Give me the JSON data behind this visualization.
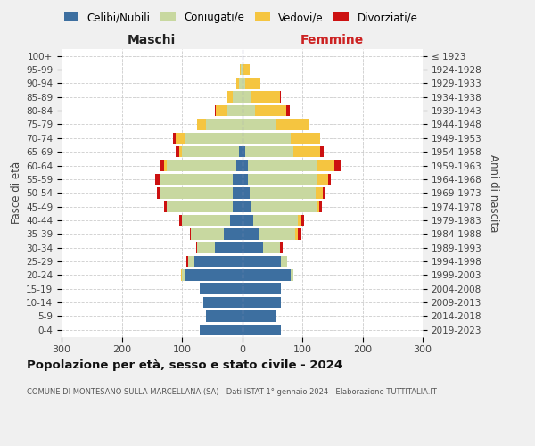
{
  "age_groups": [
    "0-4",
    "5-9",
    "10-14",
    "15-19",
    "20-24",
    "25-29",
    "30-34",
    "35-39",
    "40-44",
    "45-49",
    "50-54",
    "55-59",
    "60-64",
    "65-69",
    "70-74",
    "75-79",
    "80-84",
    "85-89",
    "90-94",
    "95-99",
    "100+"
  ],
  "birth_years": [
    "2019-2023",
    "2014-2018",
    "2009-2013",
    "2004-2008",
    "1999-2003",
    "1994-1998",
    "1989-1993",
    "1984-1988",
    "1979-1983",
    "1974-1978",
    "1969-1973",
    "1964-1968",
    "1959-1963",
    "1954-1958",
    "1949-1953",
    "1944-1948",
    "1939-1943",
    "1934-1938",
    "1929-1933",
    "1924-1928",
    "≤ 1923"
  ],
  "males": {
    "celibi": [
      70,
      60,
      65,
      70,
      95,
      80,
      45,
      30,
      20,
      15,
      15,
      15,
      10,
      5,
      0,
      0,
      0,
      0,
      0,
      0,
      0
    ],
    "coniugati": [
      0,
      0,
      0,
      0,
      5,
      10,
      30,
      55,
      80,
      110,
      120,
      120,
      115,
      95,
      95,
      60,
      25,
      15,
      5,
      2,
      0
    ],
    "vedovi": [
      0,
      0,
      0,
      0,
      2,
      0,
      0,
      0,
      0,
      0,
      2,
      2,
      5,
      5,
      15,
      15,
      18,
      10,
      5,
      2,
      0
    ],
    "divorziati": [
      0,
      0,
      0,
      0,
      0,
      2,
      2,
      2,
      5,
      5,
      5,
      8,
      5,
      5,
      5,
      0,
      2,
      0,
      0,
      0,
      0
    ]
  },
  "females": {
    "nubili": [
      65,
      55,
      65,
      65,
      80,
      65,
      35,
      28,
      18,
      15,
      12,
      10,
      10,
      5,
      0,
      0,
      0,
      0,
      0,
      0,
      0
    ],
    "coniugate": [
      0,
      0,
      0,
      0,
      5,
      10,
      28,
      60,
      75,
      108,
      110,
      115,
      115,
      80,
      80,
      55,
      22,
      15,
      5,
      2,
      0
    ],
    "vedove": [
      0,
      0,
      0,
      0,
      0,
      0,
      0,
      5,
      5,
      5,
      12,
      18,
      28,
      45,
      50,
      55,
      52,
      48,
      25,
      10,
      0
    ],
    "divorziate": [
      0,
      0,
      0,
      0,
      0,
      0,
      5,
      5,
      5,
      5,
      5,
      5,
      10,
      5,
      0,
      0,
      5,
      2,
      0,
      0,
      0
    ]
  },
  "colors": {
    "celibi": "#3d6fa0",
    "coniugati": "#c8d8a0",
    "vedovi": "#f5c540",
    "divorziati": "#cc1111"
  },
  "xlim": 300,
  "title": "Popolazione per età, sesso e stato civile - 2024",
  "subtitle": "COMUNE DI MONTESANO SULLA MARCELLANA (SA) - Dati ISTAT 1° gennaio 2024 - Elaborazione TUTTITALIA.IT",
  "xlabel_left": "Maschi",
  "xlabel_right": "Femmine",
  "ylabel_left": "Fasce di età",
  "ylabel_right": "Anni di nascita",
  "legend_labels": [
    "Celibi/Nubili",
    "Coniugati/e",
    "Vedovi/e",
    "Divorziati/e"
  ],
  "bg_color": "#f0f0f0",
  "plot_bg": "#ffffff",
  "grid_color": "#cccccc"
}
